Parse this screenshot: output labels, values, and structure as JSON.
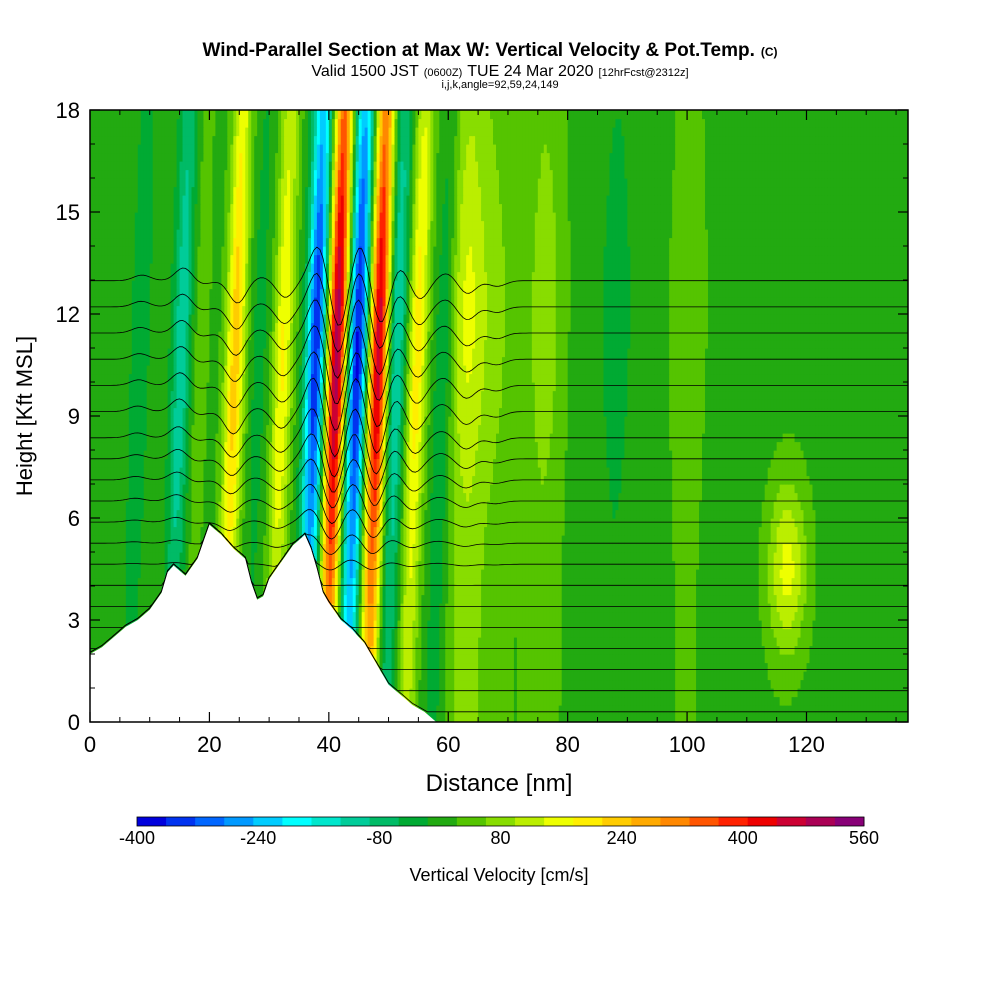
{
  "chart_data": {
    "type": "heatmap",
    "title": "Wind-Parallel Section at Max W: Vertical Velocity & Pot.Temp.",
    "title_suffix": "(C)",
    "subtitle": {
      "prefix": "Valid 1500 JST",
      "utc": "(0600Z)",
      "date": "TUE 24 Mar 2020",
      "forecast": "[12hrFcst@2312z]"
    },
    "indices_line": "i,j,k,angle=92,59,24,149",
    "xlabel": "Distance [nm]",
    "ylabel": "Height [Kft MSL]",
    "xlim": [
      0,
      137
    ],
    "ylim": [
      0,
      18
    ],
    "x_ticks": [
      0,
      20,
      40,
      60,
      80,
      100,
      120
    ],
    "y_ticks": [
      0,
      3,
      6,
      9,
      12,
      15,
      18
    ],
    "colorbar": {
      "label": "Vertical Velocity [cm/s]",
      "min": -400,
      "max": 560,
      "step": 40,
      "tick_values": [
        -400,
        -240,
        -80,
        80,
        240,
        400,
        560
      ],
      "tick_labels": [
        "-400",
        "-240",
        "-80",
        "80",
        "240",
        "400",
        "560"
      ],
      "colors": [
        "#0000dd",
        "#0033f0",
        "#0066ff",
        "#0099ff",
        "#00ccff",
        "#00ffff",
        "#00e6cc",
        "#00cc99",
        "#00bb66",
        "#00aa33",
        "#22aa11",
        "#55c400",
        "#88dd00",
        "#bbee00",
        "#eeff00",
        "#ffee00",
        "#ffcc00",
        "#ffaa00",
        "#ff8800",
        "#ff5500",
        "#ff2200",
        "#ee0000",
        "#cc0033",
        "#aa0055",
        "#880077"
      ]
    },
    "terrain_profile": [
      [
        0,
        2.0
      ],
      [
        2,
        2.2
      ],
      [
        4,
        2.5
      ],
      [
        6,
        2.8
      ],
      [
        8,
        3.0
      ],
      [
        10,
        3.3
      ],
      [
        12,
        3.8
      ],
      [
        13,
        4.4
      ],
      [
        14,
        4.6
      ],
      [
        16,
        4.3
      ],
      [
        18,
        4.8
      ],
      [
        19,
        5.3
      ],
      [
        20,
        5.8
      ],
      [
        22,
        5.5
      ],
      [
        24,
        5.1
      ],
      [
        26,
        4.8
      ],
      [
        27,
        4.1
      ],
      [
        28,
        3.6
      ],
      [
        29,
        3.7
      ],
      [
        30,
        4.2
      ],
      [
        32,
        4.7
      ],
      [
        34,
        5.2
      ],
      [
        36,
        5.5
      ],
      [
        37,
        5.1
      ],
      [
        38,
        4.5
      ],
      [
        39,
        3.8
      ],
      [
        40,
        3.5
      ],
      [
        42,
        3.0
      ],
      [
        44,
        2.7
      ],
      [
        46,
        2.3
      ],
      [
        48,
        1.7
      ],
      [
        50,
        1.1
      ],
      [
        52,
        0.8
      ],
      [
        54,
        0.5
      ],
      [
        56,
        0.3
      ],
      [
        58,
        0.0
      ]
    ],
    "w_field": {
      "description_of_structure": "alternating updraft/downdraft bands tilted with height",
      "bands": [
        {
          "x": 8,
          "amp": -60
        },
        {
          "x": 15,
          "amp": -140
        },
        {
          "x": 18,
          "amp": 40
        },
        {
          "x": 24,
          "amp": 240
        },
        {
          "x": 28,
          "amp": -40
        },
        {
          "x": 32,
          "amp": 180
        },
        {
          "x": 37.5,
          "amp": -380
        },
        {
          "x": 41,
          "amp": 520
        },
        {
          "x": 44.5,
          "amp": -400
        },
        {
          "x": 48,
          "amp": 480
        },
        {
          "x": 51,
          "amp": -160
        },
        {
          "x": 54.5,
          "amp": 200
        },
        {
          "x": 59,
          "amp": -80
        },
        {
          "x": 63,
          "amp": 140
        },
        {
          "x": 68,
          "amp": 60
        },
        {
          "x": 76,
          "amp": 80
        },
        {
          "x": 88,
          "amp": -40
        },
        {
          "x": 100,
          "amp": 40
        },
        {
          "x": 117,
          "amp": 150
        }
      ]
    },
    "theta_contours": {
      "interval_c": 2,
      "levels_from": -10,
      "levels_to": 28
    }
  }
}
